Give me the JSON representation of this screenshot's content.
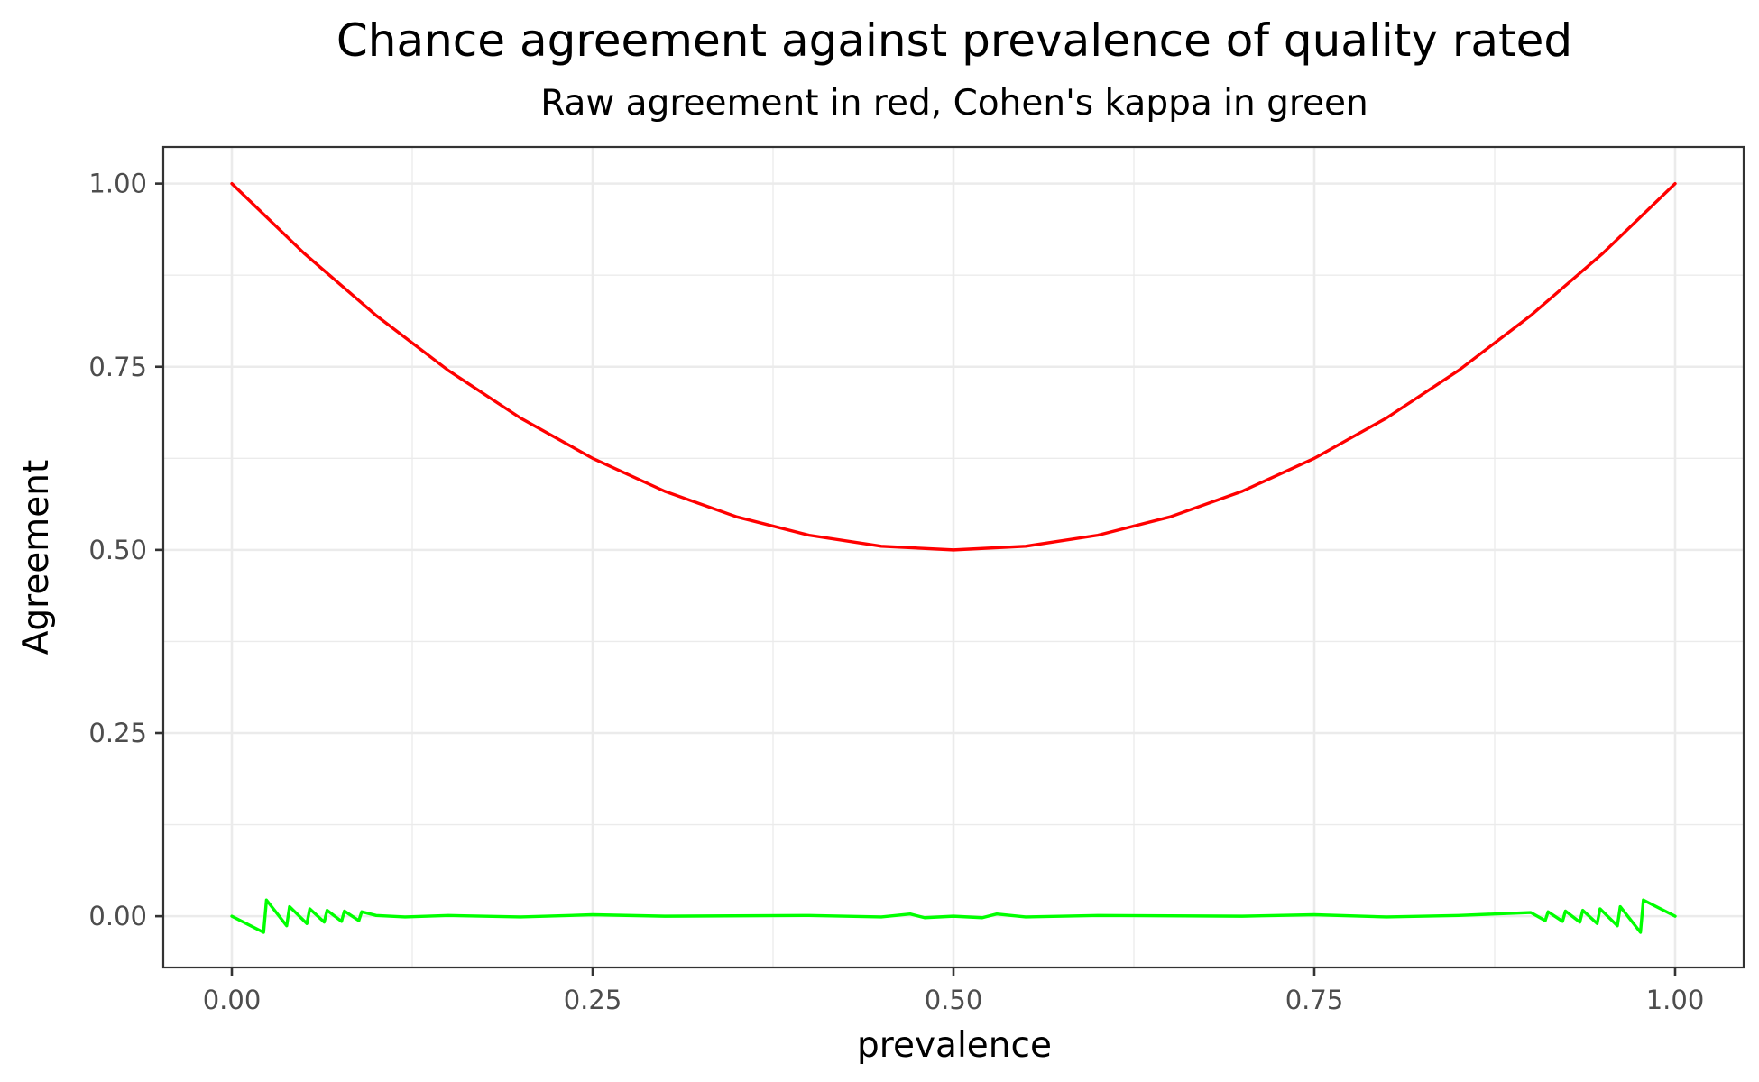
{
  "chart_data": {
    "type": "line",
    "title": "Chance agreement against prevalence of quality rated",
    "subtitle": "Raw agreement in red, Cohen's kappa in green",
    "xlabel": "prevalence",
    "ylabel": "Agreement",
    "xlim": [
      -0.0475,
      1.0475
    ],
    "ylim": [
      -0.07,
      1.05
    ],
    "x_ticks": [
      0,
      0.25,
      0.5,
      0.75,
      1
    ],
    "x_tick_labels": [
      "0.00",
      "0.25",
      "0.50",
      "0.75",
      "1.00"
    ],
    "y_ticks": [
      0,
      0.25,
      0.5,
      0.75,
      1
    ],
    "y_tick_labels": [
      "0.00",
      "0.25",
      "0.50",
      "0.75",
      "1.00"
    ],
    "grid": true,
    "legend": "none",
    "series": [
      {
        "color": "#ff0000",
        "x": [
          0.0,
          0.05,
          0.1,
          0.15,
          0.2,
          0.25,
          0.3,
          0.35,
          0.4,
          0.45,
          0.5,
          0.55,
          0.6,
          0.65,
          0.7,
          0.75,
          0.8,
          0.85,
          0.9,
          0.95,
          1.0
        ],
        "y": [
          1.0,
          0.905,
          0.82,
          0.745,
          0.68,
          0.625,
          0.58,
          0.545,
          0.52,
          0.505,
          0.5,
          0.505,
          0.52,
          0.545,
          0.58,
          0.625,
          0.68,
          0.745,
          0.82,
          0.905,
          1.0
        ]
      },
      {
        "color": "#00ff00",
        "x": [
          0.0,
          0.022,
          0.024,
          0.038,
          0.04,
          0.052,
          0.054,
          0.064,
          0.066,
          0.076,
          0.078,
          0.088,
          0.09,
          0.1,
          0.12,
          0.15,
          0.2,
          0.25,
          0.3,
          0.4,
          0.45,
          0.47,
          0.48,
          0.5,
          0.52,
          0.53,
          0.55,
          0.6,
          0.7,
          0.75,
          0.8,
          0.85,
          0.9,
          0.91,
          0.912,
          0.922,
          0.924,
          0.934,
          0.936,
          0.946,
          0.948,
          0.96,
          0.962,
          0.976,
          0.978,
          1.0
        ],
        "y": [
          0.0,
          -0.022,
          0.022,
          -0.013,
          0.013,
          -0.01,
          0.01,
          -0.008,
          0.008,
          -0.007,
          0.007,
          -0.006,
          0.006,
          0.001,
          -0.001,
          0.001,
          -0.001,
          0.002,
          0.0,
          0.001,
          -0.001,
          0.003,
          -0.002,
          0.0,
          -0.002,
          0.003,
          -0.001,
          0.001,
          0.0,
          0.002,
          -0.001,
          0.001,
          0.005,
          -0.006,
          0.006,
          -0.007,
          0.007,
          -0.008,
          0.008,
          -0.01,
          0.01,
          -0.013,
          0.013,
          -0.022,
          0.022,
          0.0
        ]
      }
    ]
  }
}
